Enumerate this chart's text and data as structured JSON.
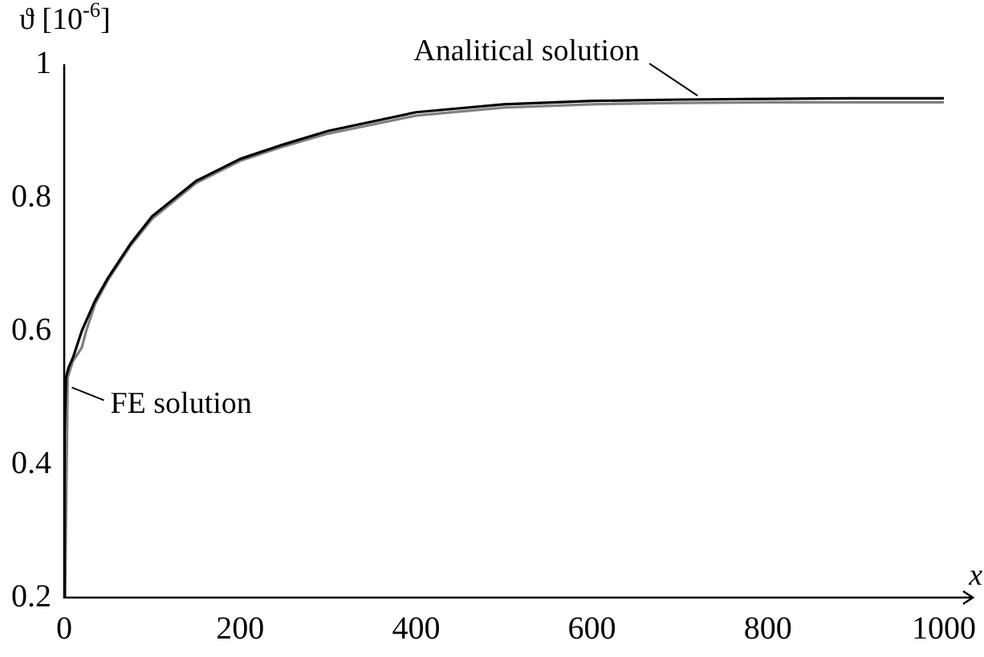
{
  "chart_data": {
    "type": "line",
    "xlabel": "x",
    "ylabel": "ϑ [10$^{-6}$]",
    "xlim": [
      0,
      1000
    ],
    "ylim": [
      0.2,
      1
    ],
    "xticks": [
      0,
      200,
      400,
      600,
      800,
      1000
    ],
    "yticks": [
      0.2,
      0.4,
      0.6,
      0.8,
      1
    ],
    "grid": false,
    "legend": false,
    "marker": "none",
    "line_style": "solid",
    "series": [
      {
        "color": "#000000",
        "x": [
          0,
          0.5,
          2,
          5,
          10,
          20,
          35,
          50,
          75,
          100,
          150,
          200,
          250,
          300,
          400,
          500,
          600,
          700,
          800,
          900,
          1000
        ],
        "values": [
          0.2,
          0.45,
          0.53,
          0.545,
          0.56,
          0.6,
          0.645,
          0.68,
          0.73,
          0.772,
          0.825,
          0.858,
          0.88,
          0.9,
          0.928,
          0.94,
          0.945,
          0.947,
          0.948,
          0.949,
          0.949
        ]
      },
      {
        "color": "#808080",
        "x": [
          1,
          4,
          10,
          20,
          25,
          35,
          50,
          75,
          100,
          150,
          200,
          250,
          300,
          400,
          500,
          600,
          700,
          800,
          900,
          1000
        ],
        "values": [
          0.2,
          0.53,
          0.555,
          0.575,
          0.6,
          0.64,
          0.677,
          0.727,
          0.768,
          0.822,
          0.855,
          0.877,
          0.896,
          0.923,
          0.935,
          0.94,
          0.942,
          0.943,
          0.943,
          0.943
        ]
      }
    ],
    "annotations": [
      {
        "text": "Analitical solution",
        "x": 720,
        "y": 0.948
      },
      {
        "text": "FE solution",
        "x": 5,
        "y": 0.52
      }
    ]
  }
}
